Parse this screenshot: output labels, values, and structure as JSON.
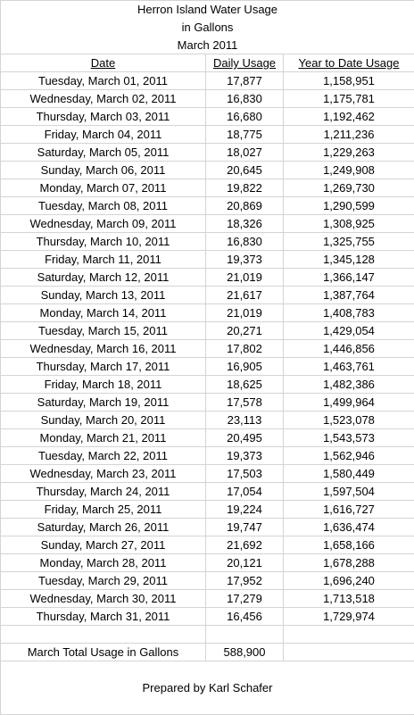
{
  "title_lines": [
    "Herron Island Water Usage",
    "in Gallons",
    "March 2011"
  ],
  "columns": [
    "Date",
    "Daily Usage",
    "Year to Date Usage"
  ],
  "rows": [
    [
      "Tuesday, March 01, 2011",
      "17,877",
      "1,158,951"
    ],
    [
      "Wednesday, March 02, 2011",
      "16,830",
      "1,175,781"
    ],
    [
      "Thursday, March 03, 2011",
      "16,680",
      "1,192,462"
    ],
    [
      "Friday, March 04, 2011",
      "18,775",
      "1,211,236"
    ],
    [
      "Saturday, March 05, 2011",
      "18,027",
      "1,229,263"
    ],
    [
      "Sunday, March 06, 2011",
      "20,645",
      "1,249,908"
    ],
    [
      "Monday, March 07, 2011",
      "19,822",
      "1,269,730"
    ],
    [
      "Tuesday, March 08, 2011",
      "20,869",
      "1,290,599"
    ],
    [
      "Wednesday, March 09, 2011",
      "18,326",
      "1,308,925"
    ],
    [
      "Thursday, March 10, 2011",
      "16,830",
      "1,325,755"
    ],
    [
      "Friday, March 11, 2011",
      "19,373",
      "1,345,128"
    ],
    [
      "Saturday, March 12, 2011",
      "21,019",
      "1,366,147"
    ],
    [
      "Sunday, March 13, 2011",
      "21,617",
      "1,387,764"
    ],
    [
      "Monday, March 14, 2011",
      "21,019",
      "1,408,783"
    ],
    [
      "Tuesday, March 15, 2011",
      "20,271",
      "1,429,054"
    ],
    [
      "Wednesday, March 16, 2011",
      "17,802",
      "1,446,856"
    ],
    [
      "Thursday, March 17, 2011",
      "16,905",
      "1,463,761"
    ],
    [
      "Friday, March 18, 2011",
      "18,625",
      "1,482,386"
    ],
    [
      "Saturday, March 19, 2011",
      "17,578",
      "1,499,964"
    ],
    [
      "Sunday, March 20, 2011",
      "23,113",
      "1,523,078"
    ],
    [
      "Monday, March 21, 2011",
      "20,495",
      "1,543,573"
    ],
    [
      "Tuesday, March 22, 2011",
      "19,373",
      "1,562,946"
    ],
    [
      "Wednesday, March 23, 2011",
      "17,503",
      "1,580,449"
    ],
    [
      "Thursday, March 24, 2011",
      "17,054",
      "1,597,504"
    ],
    [
      "Friday, March 25, 2011",
      "19,224",
      "1,616,727"
    ],
    [
      "Saturday, March 26, 2011",
      "19,747",
      "1,636,474"
    ],
    [
      "Sunday, March 27, 2011",
      "21,692",
      "1,658,166"
    ],
    [
      "Monday, March 28, 2011",
      "20,121",
      "1,678,288"
    ],
    [
      "Tuesday, March 29, 2011",
      "17,952",
      "1,696,240"
    ],
    [
      "Wednesday, March 30, 2011",
      "17,279",
      "1,713,518"
    ],
    [
      "Thursday, March 31, 2011",
      "16,456",
      "1,729,974"
    ]
  ],
  "total": {
    "label": "March Total Usage in Gallons",
    "value": "588,900"
  },
  "footer": "Prepared by Karl Schafer",
  "colors": {
    "grid": "#d4d4d4",
    "text": "#000000",
    "background": "#ffffff"
  }
}
